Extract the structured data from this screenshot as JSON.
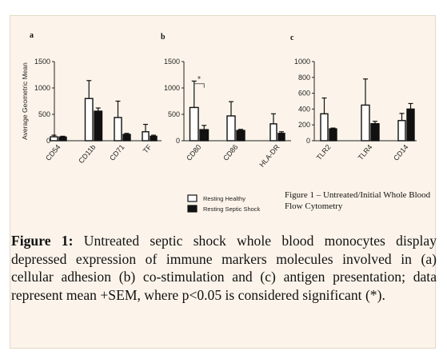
{
  "chart_data": [
    {
      "type": "bar",
      "panel_label": "a",
      "ylabel": "Average Geometric Mean",
      "ylim": [
        0,
        1500
      ],
      "yticks": [
        0,
        500,
        1000,
        1500
      ],
      "tick_labels": [
        "0",
        "500",
        "1000",
        "1500"
      ],
      "categories": [
        "CD54",
        "CD11b",
        "CD71",
        "TF"
      ],
      "series": [
        {
          "name": "Resting Healthy",
          "values": [
            75,
            800,
            440,
            170
          ],
          "errors": [
            30,
            340,
            310,
            140
          ]
        },
        {
          "name": "Resting Septic Shock",
          "values": [
            70,
            560,
            120,
            85
          ],
          "errors": [
            15,
            60,
            20,
            20
          ]
        }
      ]
    },
    {
      "type": "bar",
      "panel_label": "b",
      "ylim": [
        0,
        1500
      ],
      "yticks": [
        0,
        500,
        1000,
        1500
      ],
      "tick_labels": [
        "0",
        "500",
        "1000",
        "1500"
      ],
      "categories": [
        "CD80",
        "CD86",
        "HLA-DR"
      ],
      "series": [
        {
          "name": "Resting Healthy",
          "values": [
            630,
            470,
            320
          ],
          "errors": [
            500,
            270,
            190
          ]
        },
        {
          "name": "Resting Septic Shock",
          "values": [
            210,
            195,
            140
          ],
          "errors": [
            80,
            20,
            30
          ]
        }
      ],
      "annotation": "*"
    },
    {
      "type": "bar",
      "panel_label": "c",
      "ylim": [
        0,
        1000
      ],
      "yticks": [
        0,
        200,
        400,
        600,
        800,
        1000
      ],
      "tick_labels": [
        "0",
        "200",
        "400",
        "600",
        "800",
        "1000"
      ],
      "categories": [
        "TLR2",
        "TLR4",
        "CD14"
      ],
      "series": [
        {
          "name": "Resting Healthy",
          "values": [
            340,
            450,
            255
          ],
          "errors": [
            200,
            330,
            90
          ]
        },
        {
          "name": "Resting Septic Shock",
          "values": [
            150,
            215,
            400
          ],
          "errors": [
            10,
            30,
            70
          ]
        }
      ]
    }
  ],
  "legend": {
    "items": [
      "Resting Healthy",
      "Resting Septic Shock"
    ]
  },
  "figure_note": "Figure 1 – Untreated/Initial Whole Blood Flow Cytometry",
  "caption": {
    "label": "Figure 1:",
    "text": " Untreated septic shock whole blood monocytes display depressed expression of immune markers molecules involved in (a) cellular adhesion (b) co-stimulation and (c) antigen presentation; data represent mean +SEM, where p<0.05 is considered significant (*)."
  }
}
